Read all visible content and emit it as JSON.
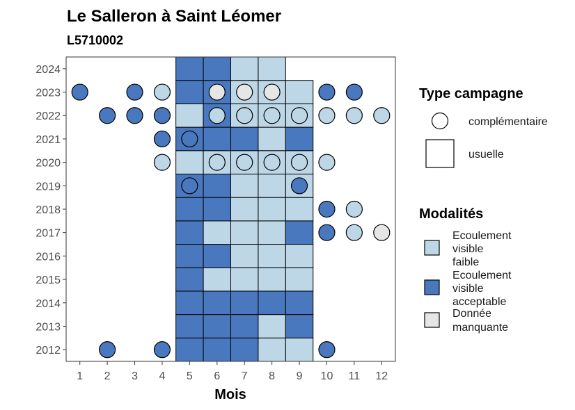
{
  "chart_data": {
    "type": "heatmap",
    "title": "Le Salleron à Saint Léomer",
    "subtitle": "L5710002",
    "xlabel": "Mois",
    "ylabel": "",
    "x_ticks": [
      "1",
      "2",
      "3",
      "4",
      "5",
      "6",
      "7",
      "8",
      "9",
      "10",
      "11",
      "12"
    ],
    "y_ticks": [
      "2012",
      "2013",
      "2014",
      "2015",
      "2016",
      "2017",
      "2018",
      "2019",
      "2020",
      "2021",
      "2022",
      "2023",
      "2024"
    ],
    "xlim": [
      0.5,
      12.5
    ],
    "ylim": [
      2011.5,
      2024.5
    ],
    "grid": false,
    "colors": {
      "faible": "#bdd7e7",
      "acceptable": "#4a78be",
      "manquante": "#e6e6e6"
    },
    "legend_type": {
      "title": "Type campagne",
      "items": [
        {
          "shape": "circle",
          "label": "complémentaire"
        },
        {
          "shape": "square",
          "label": "usuelle"
        }
      ]
    },
    "legend_modalites": {
      "title": "Modalités",
      "items": [
        {
          "key": "faible",
          "lines": [
            "Ecoulement",
            "visible",
            "faible"
          ]
        },
        {
          "key": "acceptable",
          "lines": [
            "Ecoulement",
            "visible",
            "acceptable"
          ]
        },
        {
          "key": "manquante",
          "lines": [
            "Donnée",
            "manquante"
          ]
        }
      ]
    },
    "usuelle": [
      {
        "year": 2012,
        "month": 5,
        "value": "acceptable"
      },
      {
        "year": 2012,
        "month": 6,
        "value": "acceptable"
      },
      {
        "year": 2012,
        "month": 7,
        "value": "acceptable"
      },
      {
        "year": 2012,
        "month": 8,
        "value": "faible"
      },
      {
        "year": 2012,
        "month": 9,
        "value": "faible"
      },
      {
        "year": 2013,
        "month": 5,
        "value": "acceptable"
      },
      {
        "year": 2013,
        "month": 6,
        "value": "acceptable"
      },
      {
        "year": 2013,
        "month": 7,
        "value": "acceptable"
      },
      {
        "year": 2013,
        "month": 8,
        "value": "faible"
      },
      {
        "year": 2013,
        "month": 9,
        "value": "acceptable"
      },
      {
        "year": 2014,
        "month": 5,
        "value": "acceptable"
      },
      {
        "year": 2014,
        "month": 6,
        "value": "acceptable"
      },
      {
        "year": 2014,
        "month": 7,
        "value": "acceptable"
      },
      {
        "year": 2014,
        "month": 8,
        "value": "acceptable"
      },
      {
        "year": 2014,
        "month": 9,
        "value": "acceptable"
      },
      {
        "year": 2015,
        "month": 5,
        "value": "acceptable"
      },
      {
        "year": 2015,
        "month": 6,
        "value": "faible"
      },
      {
        "year": 2015,
        "month": 7,
        "value": "faible"
      },
      {
        "year": 2015,
        "month": 8,
        "value": "faible"
      },
      {
        "year": 2015,
        "month": 9,
        "value": "faible"
      },
      {
        "year": 2016,
        "month": 5,
        "value": "acceptable"
      },
      {
        "year": 2016,
        "month": 6,
        "value": "acceptable"
      },
      {
        "year": 2016,
        "month": 7,
        "value": "faible"
      },
      {
        "year": 2016,
        "month": 8,
        "value": "faible"
      },
      {
        "year": 2016,
        "month": 9,
        "value": "faible"
      },
      {
        "year": 2017,
        "month": 5,
        "value": "acceptable"
      },
      {
        "year": 2017,
        "month": 6,
        "value": "faible"
      },
      {
        "year": 2017,
        "month": 7,
        "value": "faible"
      },
      {
        "year": 2017,
        "month": 8,
        "value": "faible"
      },
      {
        "year": 2017,
        "month": 9,
        "value": "acceptable"
      },
      {
        "year": 2018,
        "month": 5,
        "value": "acceptable"
      },
      {
        "year": 2018,
        "month": 6,
        "value": "acceptable"
      },
      {
        "year": 2018,
        "month": 7,
        "value": "faible"
      },
      {
        "year": 2018,
        "month": 8,
        "value": "faible"
      },
      {
        "year": 2018,
        "month": 9,
        "value": "faible"
      },
      {
        "year": 2019,
        "month": 5,
        "value": "acceptable"
      },
      {
        "year": 2019,
        "month": 6,
        "value": "acceptable"
      },
      {
        "year": 2019,
        "month": 7,
        "value": "faible"
      },
      {
        "year": 2019,
        "month": 8,
        "value": "faible"
      },
      {
        "year": 2019,
        "month": 9,
        "value": "faible"
      },
      {
        "year": 2020,
        "month": 5,
        "value": "faible"
      },
      {
        "year": 2020,
        "month": 6,
        "value": "faible"
      },
      {
        "year": 2020,
        "month": 7,
        "value": "faible"
      },
      {
        "year": 2020,
        "month": 8,
        "value": "faible"
      },
      {
        "year": 2020,
        "month": 9,
        "value": "faible"
      },
      {
        "year": 2021,
        "month": 5,
        "value": "acceptable"
      },
      {
        "year": 2021,
        "month": 6,
        "value": "acceptable"
      },
      {
        "year": 2021,
        "month": 7,
        "value": "acceptable"
      },
      {
        "year": 2021,
        "month": 8,
        "value": "faible"
      },
      {
        "year": 2021,
        "month": 9,
        "value": "acceptable"
      },
      {
        "year": 2022,
        "month": 5,
        "value": "faible"
      },
      {
        "year": 2022,
        "month": 6,
        "value": "acceptable"
      },
      {
        "year": 2022,
        "month": 7,
        "value": "faible"
      },
      {
        "year": 2022,
        "month": 8,
        "value": "faible"
      },
      {
        "year": 2022,
        "month": 9,
        "value": "faible"
      },
      {
        "year": 2023,
        "month": 5,
        "value": "acceptable"
      },
      {
        "year": 2023,
        "month": 6,
        "value": "acceptable"
      },
      {
        "year": 2023,
        "month": 7,
        "value": "faible"
      },
      {
        "year": 2023,
        "month": 8,
        "value": "faible"
      },
      {
        "year": 2023,
        "month": 9,
        "value": "faible"
      },
      {
        "year": 2024,
        "month": 5,
        "value": "acceptable"
      },
      {
        "year": 2024,
        "month": 6,
        "value": "acceptable"
      },
      {
        "year": 2024,
        "month": 7,
        "value": "faible"
      },
      {
        "year": 2024,
        "month": 8,
        "value": "faible"
      }
    ],
    "complementaire": [
      {
        "year": 2012,
        "month": 2,
        "value": "acceptable"
      },
      {
        "year": 2012,
        "month": 4,
        "value": "acceptable"
      },
      {
        "year": 2012,
        "month": 10,
        "value": "acceptable"
      },
      {
        "year": 2017,
        "month": 10,
        "value": "acceptable"
      },
      {
        "year": 2017,
        "month": 11,
        "value": "faible"
      },
      {
        "year": 2017,
        "month": 12,
        "value": "manquante"
      },
      {
        "year": 2018,
        "month": 10,
        "value": "acceptable"
      },
      {
        "year": 2018,
        "month": 11,
        "value": "faible"
      },
      {
        "year": 2019,
        "month": 5,
        "value": "acceptable"
      },
      {
        "year": 2019,
        "month": 9,
        "value": "acceptable"
      },
      {
        "year": 2020,
        "month": 4,
        "value": "faible"
      },
      {
        "year": 2020,
        "month": 6,
        "value": "faible"
      },
      {
        "year": 2020,
        "month": 7,
        "value": "faible"
      },
      {
        "year": 2020,
        "month": 8,
        "value": "faible"
      },
      {
        "year": 2020,
        "month": 9,
        "value": "faible"
      },
      {
        "year": 2020,
        "month": 10,
        "value": "faible"
      },
      {
        "year": 2021,
        "month": 4,
        "value": "acceptable"
      },
      {
        "year": 2021,
        "month": 5,
        "value": "acceptable"
      },
      {
        "year": 2022,
        "month": 2,
        "value": "acceptable"
      },
      {
        "year": 2022,
        "month": 3,
        "value": "acceptable"
      },
      {
        "year": 2022,
        "month": 4,
        "value": "acceptable"
      },
      {
        "year": 2022,
        "month": 6,
        "value": "faible"
      },
      {
        "year": 2022,
        "month": 7,
        "value": "faible"
      },
      {
        "year": 2022,
        "month": 8,
        "value": "faible"
      },
      {
        "year": 2022,
        "month": 9,
        "value": "faible"
      },
      {
        "year": 2022,
        "month": 10,
        "value": "faible"
      },
      {
        "year": 2022,
        "month": 11,
        "value": "faible"
      },
      {
        "year": 2022,
        "month": 12,
        "value": "faible"
      },
      {
        "year": 2023,
        "month": 1,
        "value": "acceptable"
      },
      {
        "year": 2023,
        "month": 3,
        "value": "acceptable"
      },
      {
        "year": 2023,
        "month": 4,
        "value": "faible"
      },
      {
        "year": 2023,
        "month": 6,
        "value": "manquante"
      },
      {
        "year": 2023,
        "month": 7,
        "value": "manquante"
      },
      {
        "year": 2023,
        "month": 8,
        "value": "manquante"
      },
      {
        "year": 2023,
        "month": 10,
        "value": "acceptable"
      },
      {
        "year": 2023,
        "month": 11,
        "value": "acceptable"
      }
    ]
  }
}
